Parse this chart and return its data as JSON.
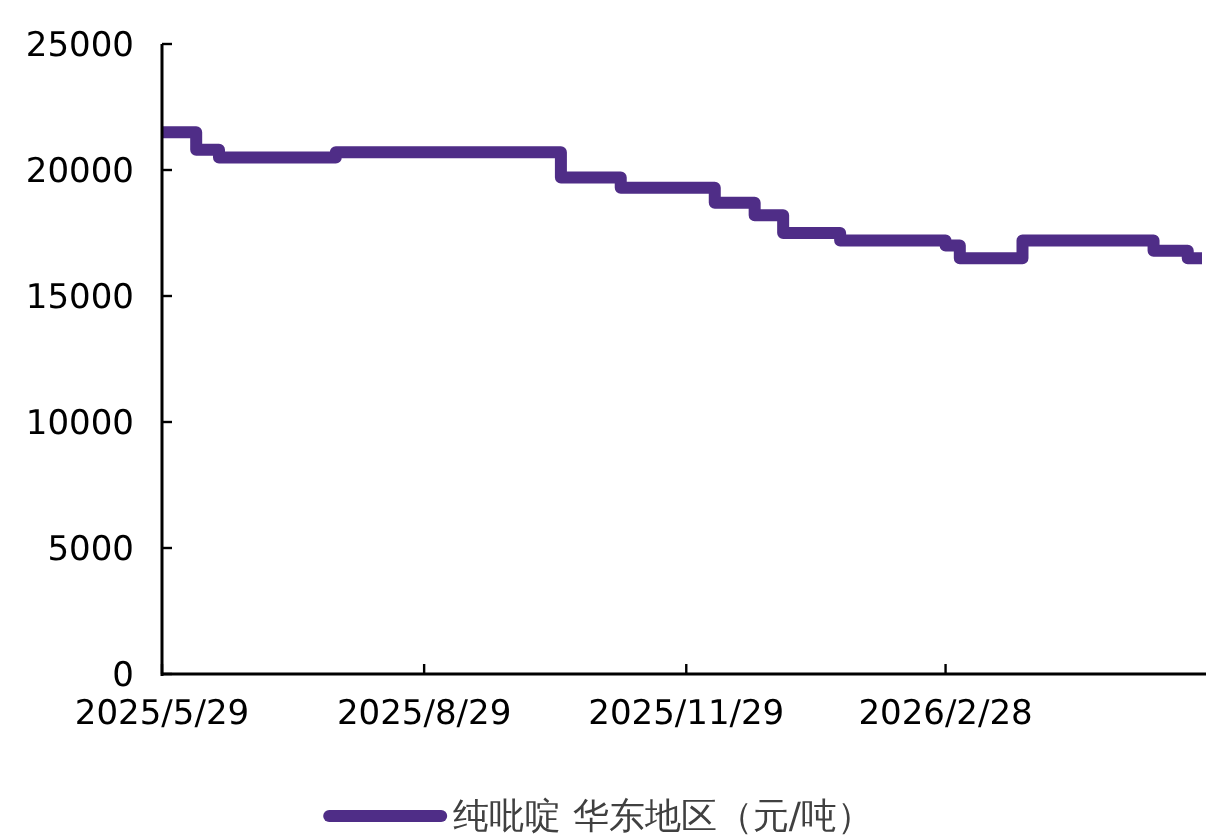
{
  "chart_data": {
    "type": "step",
    "x": [
      "2025-05-29",
      "2025-06-10",
      "2025-06-18",
      "2025-07-29",
      "2025-10-16",
      "2025-11-06",
      "2025-12-09",
      "2025-12-23",
      "2026-01-02",
      "2026-01-22",
      "2026-02-28",
      "2026-03-05",
      "2026-03-27",
      "2026-05-12",
      "2026-05-24",
      "2026-05-29"
    ],
    "series": [
      {
        "name": "纯吡啶 华东地区（元/吨）",
        "color": "#4f2d87",
        "values": [
          21500,
          20800,
          20500,
          20700,
          19700,
          19300,
          18700,
          18200,
          17500,
          17200,
          17000,
          16500,
          17200,
          16800,
          16500,
          16500
        ]
      }
    ],
    "xlim": [
      "2025-05-29",
      "2026-05-29"
    ],
    "xticks": [
      {
        "value": "2025-05-29",
        "label": "2025/5/29"
      },
      {
        "value": "2025-08-29",
        "label": "2025/8/29"
      },
      {
        "value": "2025-11-29",
        "label": "2025/11/29"
      },
      {
        "value": "2026-02-28",
        "label": "2026/2/28"
      }
    ],
    "ylim": [
      0,
      25000
    ],
    "yticks": [
      0,
      5000,
      10000,
      15000,
      20000,
      25000
    ],
    "legend": "bottom"
  }
}
